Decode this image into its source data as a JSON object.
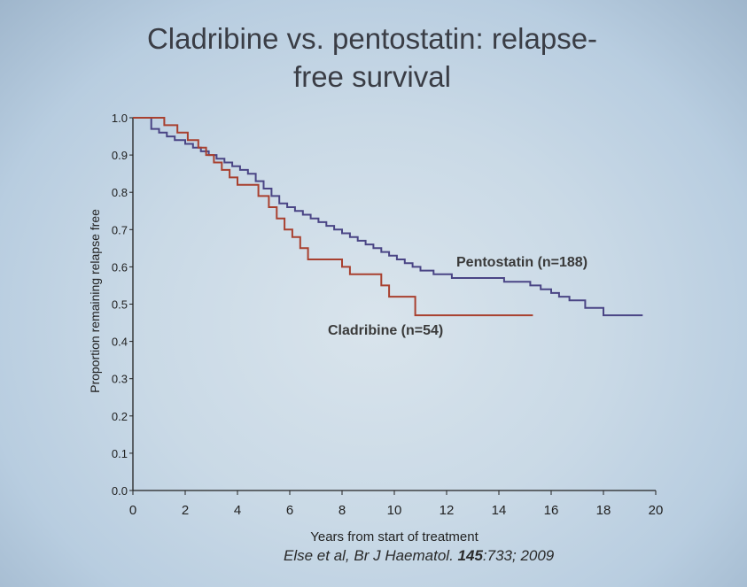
{
  "slide": {
    "title_line1": "Cladribine vs. pentostatin: relapse-",
    "title_line2": "free survival",
    "citation_prefix": "Else et al, Br J Haematol. ",
    "citation_volume": "145",
    "citation_suffix": ":733; 2009"
  },
  "chart_data": {
    "type": "line",
    "title": "",
    "xlabel": "Years from start of treatment",
    "ylabel": "Proportion remaining relapse free",
    "xlim": [
      0,
      20
    ],
    "ylim": [
      0.0,
      1.0
    ],
    "xticks": [
      "0",
      "2",
      "4",
      "6",
      "8",
      "10",
      "12",
      "14",
      "16",
      "18",
      "20"
    ],
    "yticks": [
      "0.0",
      "0.1",
      "0.2",
      "0.3",
      "0.4",
      "0.5",
      "0.6",
      "0.7",
      "0.8",
      "0.9",
      "1.0"
    ],
    "grid": false,
    "legend": "direct labels",
    "series": [
      {
        "name": "Pentostatin (n=188)",
        "color": "#4a4585",
        "step": true,
        "x": [
          0,
          0.7,
          1.0,
          1.3,
          1.6,
          2.0,
          2.3,
          2.6,
          2.9,
          3.2,
          3.5,
          3.8,
          4.1,
          4.4,
          4.7,
          5.0,
          5.3,
          5.6,
          5.9,
          6.2,
          6.5,
          6.8,
          7.1,
          7.4,
          7.7,
          8.0,
          8.3,
          8.6,
          8.9,
          9.2,
          9.5,
          9.8,
          10.1,
          10.4,
          10.7,
          11.0,
          11.5,
          12.2,
          12.8,
          13.5,
          14.2,
          14.8,
          15.2,
          15.6,
          16.0,
          16.3,
          16.7,
          17.3,
          18.0,
          19.5
        ],
        "y": [
          1.0,
          0.97,
          0.96,
          0.95,
          0.94,
          0.93,
          0.92,
          0.91,
          0.9,
          0.89,
          0.88,
          0.87,
          0.86,
          0.85,
          0.83,
          0.81,
          0.79,
          0.77,
          0.76,
          0.75,
          0.74,
          0.73,
          0.72,
          0.71,
          0.7,
          0.69,
          0.68,
          0.67,
          0.66,
          0.65,
          0.64,
          0.63,
          0.62,
          0.61,
          0.6,
          0.59,
          0.58,
          0.57,
          0.57,
          0.57,
          0.56,
          0.56,
          0.55,
          0.54,
          0.53,
          0.52,
          0.51,
          0.49,
          0.47,
          0.47
        ]
      },
      {
        "name": "Cladribine (n=54)",
        "color": "#a8402f",
        "step": true,
        "x": [
          0,
          0.7,
          1.2,
          1.7,
          2.1,
          2.5,
          2.8,
          3.1,
          3.4,
          3.7,
          4.0,
          4.8,
          5.2,
          5.5,
          5.8,
          6.1,
          6.4,
          6.7,
          8.0,
          8.3,
          9.5,
          9.8,
          10.8,
          15.3
        ],
        "y": [
          1.0,
          1.0,
          0.98,
          0.96,
          0.94,
          0.92,
          0.9,
          0.88,
          0.86,
          0.84,
          0.82,
          0.79,
          0.76,
          0.73,
          0.7,
          0.68,
          0.65,
          0.62,
          0.6,
          0.58,
          0.55,
          0.52,
          0.47,
          0.47
        ]
      }
    ]
  }
}
